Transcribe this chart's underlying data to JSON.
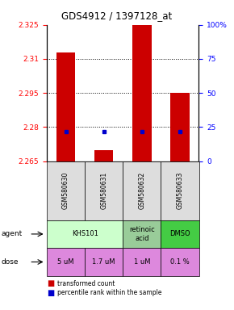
{
  "title": "GDS4912 / 1397128_at",
  "samples": [
    "GSM580630",
    "GSM580631",
    "GSM580632",
    "GSM580633"
  ],
  "bar_values": [
    2.313,
    2.27,
    2.325,
    2.295
  ],
  "blue_dot_values": [
    2.278,
    2.278,
    2.278,
    2.278
  ],
  "bar_color": "#cc0000",
  "dot_color": "#0000cc",
  "y_min": 2.265,
  "y_max": 2.325,
  "y_ticks": [
    2.265,
    2.28,
    2.295,
    2.31,
    2.325
  ],
  "right_y_ticks": [
    0,
    25,
    50,
    75,
    100
  ],
  "right_y_labels": [
    "0",
    "25",
    "50",
    "75",
    "100%"
  ],
  "doses": [
    "5 uM",
    "1.7 uM",
    "1 uM",
    "0.1 %"
  ],
  "dose_color": "#dd88dd",
  "agent_data": [
    {
      "label": "KHS101",
      "cols": [
        0,
        1
      ],
      "color": "#ccffcc"
    },
    {
      "label": "retinoic\nacid",
      "cols": [
        2,
        2
      ],
      "color": "#99cc99"
    },
    {
      "label": "DMSO",
      "cols": [
        3,
        3
      ],
      "color": "#44cc44"
    }
  ],
  "legend_red_label": "transformed count",
  "legend_blue_label": "percentile rank within the sample",
  "bar_width": 0.5,
  "sample_bg": "#dddddd"
}
